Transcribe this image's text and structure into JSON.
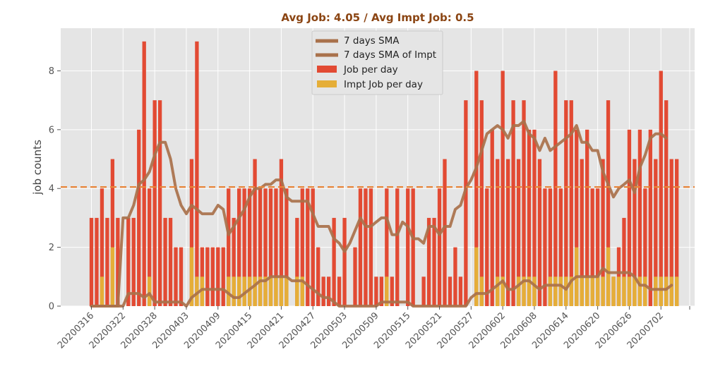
{
  "colors": {
    "job": "#E24A33",
    "impt": "#E5AE38",
    "sma": "#A9714B",
    "sma_impt": "#A9714B",
    "avg_line": "#E8853A",
    "title": "#8B4513",
    "plot_bg": "#E5E5E5"
  },
  "chart_data": {
    "type": "bar",
    "title": "Avg Job: 4.05 / Avg Impt Job: 0.5",
    "xlabel": "",
    "ylabel": "job counts",
    "ylim": [
      0,
      9.45
    ],
    "yticks": [
      0,
      2,
      4,
      6,
      8
    ],
    "grid": true,
    "legend_position": "top-center",
    "average_line": 4.05,
    "start_date": "20200316",
    "xticks": [
      "20200316",
      "20200322",
      "20200328",
      "20200403",
      "20200409",
      "20200415",
      "20200421",
      "20200427",
      "20200503",
      "20200509",
      "20200515",
      "20200521",
      "20200527",
      "20200602",
      "20200608",
      "20200614",
      "20200620",
      "20200626",
      "20200702"
    ],
    "legend": [
      "7 days SMA",
      "7 days SMA of Impt",
      "Job per day",
      "Impt Job per day"
    ],
    "series": [
      {
        "name": "Job per day",
        "type": "bar",
        "values": [
          3,
          3,
          4,
          3,
          5,
          3,
          0,
          3,
          3,
          6,
          9,
          4,
          7,
          7,
          3,
          3,
          2,
          2,
          0,
          5,
          9,
          2,
          2,
          2,
          2,
          2,
          4,
          3,
          4,
          4,
          4,
          5,
          4,
          4,
          4,
          4,
          5,
          4,
          0,
          3,
          4,
          4,
          4,
          2,
          1,
          1,
          3,
          1,
          3,
          0,
          2,
          4,
          4,
          4,
          1,
          1,
          4,
          1,
          4,
          0,
          4,
          4,
          0,
          1,
          3,
          3,
          4,
          5,
          1,
          2,
          1,
          7,
          0,
          8,
          7,
          4,
          6,
          5,
          8,
          5,
          7,
          5,
          7,
          6,
          6,
          5,
          4,
          4,
          8,
          4,
          7,
          7,
          6,
          5,
          6,
          4,
          4,
          5,
          7,
          1,
          2,
          3,
          6,
          5,
          6,
          4,
          6,
          5,
          8,
          7,
          5,
          5
        ]
      },
      {
        "name": "Impt Job per day",
        "type": "bar",
        "values": [
          0,
          0,
          1,
          0,
          2,
          0,
          0,
          0,
          0,
          0,
          0,
          1,
          0,
          0,
          0,
          0,
          0,
          0,
          0,
          2,
          1,
          1,
          0,
          0,
          0,
          0,
          1,
          1,
          1,
          1,
          1,
          1,
          1,
          1,
          1,
          1,
          1,
          1,
          0,
          1,
          1,
          0,
          0,
          0,
          0,
          0,
          0,
          0,
          0,
          0,
          0,
          0,
          0,
          0,
          0,
          0,
          1,
          0,
          0,
          0,
          0,
          0,
          0,
          0,
          0,
          0,
          0,
          0,
          0,
          0,
          0,
          0,
          0,
          2,
          1,
          0,
          0,
          1,
          1,
          0,
          0,
          1,
          1,
          1,
          1,
          0,
          0,
          1,
          1,
          1,
          1,
          1,
          2,
          1,
          1,
          1,
          1,
          1,
          2,
          1,
          1,
          1,
          1,
          1,
          1,
          1,
          0,
          1,
          1,
          1,
          1,
          1
        ]
      },
      {
        "name": "7 days SMA",
        "type": "line",
        "values": [
          0,
          0,
          0,
          0,
          0,
          0,
          3.0,
          3.0,
          3.43,
          4.14,
          4.29,
          4.57,
          5.14,
          5.57,
          5.57,
          5.0,
          4.0,
          3.43,
          3.14,
          3.43,
          3.29,
          3.14,
          3.14,
          3.14,
          3.43,
          3.29,
          2.43,
          2.71,
          3.0,
          3.29,
          3.71,
          4.0,
          4.0,
          4.14,
          4.14,
          4.29,
          4.29,
          3.71,
          3.57,
          3.57,
          3.57,
          3.57,
          3.14,
          2.71,
          2.71,
          2.71,
          2.29,
          2.14,
          1.86,
          2.14,
          2.57,
          3.0,
          2.71,
          2.71,
          2.86,
          3.0,
          3.0,
          2.43,
          2.43,
          2.86,
          2.71,
          2.29,
          2.29,
          2.14,
          2.71,
          2.71,
          2.43,
          2.71,
          2.71,
          3.29,
          3.43,
          4.0,
          4.29,
          4.71,
          5.29,
          5.86,
          6.0,
          6.14,
          6.0,
          5.71,
          6.14,
          6.14,
          6.29,
          5.86,
          5.71,
          5.29,
          5.71,
          5.29,
          5.43,
          5.57,
          5.71,
          5.86,
          6.14,
          5.57,
          5.57,
          5.29,
          5.29,
          4.57,
          4.14,
          3.71,
          4.0,
          4.14,
          4.29,
          3.86,
          4.71,
          5.14,
          5.71,
          5.86,
          5.86,
          5.71
        ]
      },
      {
        "name": "7 days SMA of Impt",
        "type": "line",
        "values": [
          0,
          0,
          0,
          0,
          0,
          0,
          0,
          0.43,
          0.43,
          0.43,
          0.29,
          0.43,
          0.14,
          0.14,
          0.14,
          0.14,
          0.14,
          0.14,
          0,
          0.29,
          0.43,
          0.57,
          0.57,
          0.57,
          0.57,
          0.57,
          0.43,
          0.29,
          0.29,
          0.43,
          0.57,
          0.71,
          0.86,
          0.86,
          1.0,
          1.0,
          1.0,
          1.0,
          0.86,
          0.86,
          0.86,
          0.71,
          0.57,
          0.43,
          0.29,
          0.29,
          0.14,
          0,
          0,
          0,
          0,
          0,
          0,
          0,
          0,
          0.14,
          0.14,
          0.14,
          0.14,
          0.14,
          0.14,
          0,
          0,
          0,
          0,
          0,
          0,
          0,
          0,
          0,
          0,
          0,
          0.29,
          0.43,
          0.43,
          0.43,
          0.57,
          0.71,
          0.86,
          0.57,
          0.57,
          0.71,
          0.86,
          0.86,
          0.71,
          0.57,
          0.71,
          0.71,
          0.71,
          0.71,
          0.57,
          0.86,
          1.0,
          1.0,
          1.0,
          1.0,
          1.0,
          1.29,
          1.14,
          1.14,
          1.14,
          1.14,
          1.14,
          1.0,
          0.71,
          0.71,
          0.57,
          0.57,
          0.57,
          0.57,
          0.71
        ]
      }
    ]
  }
}
